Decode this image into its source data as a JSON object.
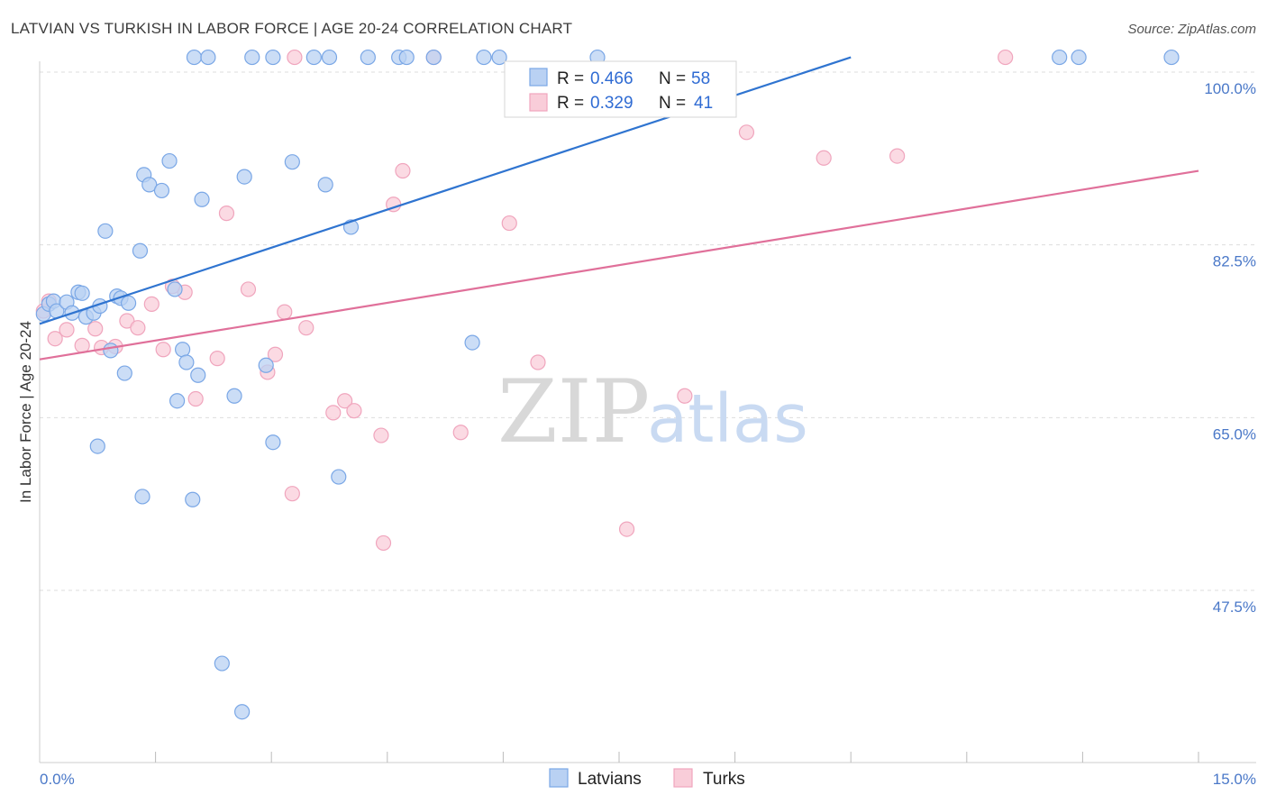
{
  "title": "LATVIAN VS TURKISH IN LABOR FORCE | AGE 20-24 CORRELATION CHART",
  "source": "Source: ZipAtlas.com",
  "chart_data": {
    "type": "scatter",
    "title": "LATVIAN VS TURKISH IN LABOR FORCE | AGE 20-24 CORRELATION CHART",
    "xlabel": "",
    "ylabel": "In Labor Force | Age 20-24",
    "xlim": [
      0,
      15
    ],
    "ylim": [
      32,
      101.5
    ],
    "x_tick_labels": [
      "0.0%",
      "15.0%"
    ],
    "y_ticks": [
      47.5,
      65.0,
      82.5,
      100.0
    ],
    "y_tick_labels": [
      "47.5%",
      "65.0%",
      "82.5%",
      "100.0%"
    ],
    "grid": true,
    "watermark": {
      "zip": "ZIP",
      "atlas": "atlas"
    },
    "legend": {
      "position": "top-center",
      "entries": [
        {
          "r_label": "R =",
          "r_value": "0.466",
          "n_label": "N =",
          "n_value": "58"
        },
        {
          "r_label": "R =",
          "r_value": "0.329",
          "n_label": "N =",
          "n_value": "41"
        }
      ]
    },
    "series": [
      {
        "name": "Latvians",
        "color": "#7aa7e6",
        "fill": "#b9d1f3",
        "line_color": "#2f74d0",
        "trend": {
          "x0": 0.0,
          "y0": 74.5,
          "x1": 10.5,
          "y1": 101.5
        },
        "points": [
          [
            0.05,
            75.5
          ],
          [
            0.12,
            76.5
          ],
          [
            0.18,
            76.8
          ],
          [
            0.22,
            75.8
          ],
          [
            0.35,
            76.7
          ],
          [
            0.42,
            75.6
          ],
          [
            0.5,
            77.7
          ],
          [
            0.55,
            77.6
          ],
          [
            0.6,
            75.2
          ],
          [
            0.7,
            75.6
          ],
          [
            0.78,
            76.3
          ],
          [
            0.85,
            83.9
          ],
          [
            0.92,
            71.8
          ],
          [
            1.0,
            77.3
          ],
          [
            1.05,
            77.1
          ],
          [
            1.15,
            76.6
          ],
          [
            1.1,
            69.5
          ],
          [
            1.3,
            81.9
          ],
          [
            1.35,
            89.6
          ],
          [
            1.42,
            88.6
          ],
          [
            1.58,
            88.0
          ],
          [
            1.68,
            91.0
          ],
          [
            1.78,
            66.7
          ],
          [
            1.85,
            71.9
          ],
          [
            1.9,
            70.6
          ],
          [
            2.05,
            69.3
          ],
          [
            2.1,
            87.1
          ],
          [
            2.52,
            67.2
          ],
          [
            2.65,
            89.4
          ],
          [
            2.93,
            70.3
          ],
          [
            3.02,
            62.5
          ],
          [
            3.27,
            90.9
          ],
          [
            3.7,
            88.6
          ],
          [
            3.87,
            59.0
          ],
          [
            4.03,
            84.3
          ],
          [
            5.6,
            72.6
          ],
          [
            0.75,
            62.1
          ],
          [
            1.33,
            57.0
          ],
          [
            1.98,
            56.7
          ],
          [
            2.36,
            40.1
          ],
          [
            2.62,
            35.2
          ],
          [
            2.0,
            101.5
          ],
          [
            2.18,
            101.5
          ],
          [
            2.75,
            101.5
          ],
          [
            3.02,
            101.5
          ],
          [
            3.55,
            101.5
          ],
          [
            3.75,
            101.5
          ],
          [
            4.25,
            101.5
          ],
          [
            4.65,
            101.5
          ],
          [
            4.75,
            101.5
          ],
          [
            5.1,
            101.5
          ],
          [
            5.75,
            101.5
          ],
          [
            5.95,
            101.5
          ],
          [
            7.22,
            101.5
          ],
          [
            13.2,
            101.5
          ],
          [
            13.45,
            101.5
          ],
          [
            14.65,
            101.5
          ],
          [
            1.75,
            78.0
          ]
        ]
      },
      {
        "name": "Turks",
        "color": "#f0a5bd",
        "fill": "#f9cdd9",
        "line_color": "#e0709a",
        "trend": {
          "x0": 0.0,
          "y0": 70.9,
          "x1": 15.0,
          "y1": 90.0
        },
        "points": [
          [
            0.05,
            75.8
          ],
          [
            0.12,
            76.8
          ],
          [
            0.2,
            73.0
          ],
          [
            0.35,
            73.9
          ],
          [
            0.55,
            72.3
          ],
          [
            0.72,
            74.0
          ],
          [
            0.8,
            72.1
          ],
          [
            0.98,
            72.2
          ],
          [
            1.13,
            74.8
          ],
          [
            1.27,
            74.1
          ],
          [
            1.45,
            76.5
          ],
          [
            1.6,
            71.9
          ],
          [
            1.88,
            77.7
          ],
          [
            1.72,
            78.3
          ],
          [
            2.02,
            66.9
          ],
          [
            2.3,
            71.0
          ],
          [
            2.42,
            85.7
          ],
          [
            2.7,
            78.0
          ],
          [
            2.95,
            69.6
          ],
          [
            3.05,
            71.4
          ],
          [
            3.17,
            75.7
          ],
          [
            3.27,
            57.3
          ],
          [
            3.45,
            74.1
          ],
          [
            3.8,
            65.5
          ],
          [
            3.95,
            66.7
          ],
          [
            4.07,
            65.7
          ],
          [
            4.42,
            63.2
          ],
          [
            4.58,
            86.6
          ],
          [
            4.7,
            90.0
          ],
          [
            4.45,
            52.3
          ],
          [
            5.45,
            63.5
          ],
          [
            6.08,
            84.7
          ],
          [
            6.45,
            70.6
          ],
          [
            7.6,
            53.7
          ],
          [
            8.35,
            67.2
          ],
          [
            9.15,
            93.9
          ],
          [
            10.15,
            91.3
          ],
          [
            11.1,
            91.5
          ],
          [
            3.3,
            101.5
          ],
          [
            5.1,
            101.5
          ],
          [
            12.5,
            101.5
          ]
        ]
      }
    ]
  }
}
